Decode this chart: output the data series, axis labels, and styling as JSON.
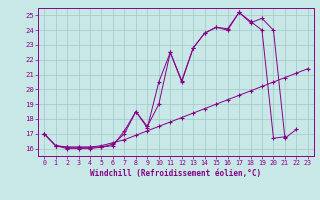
{
  "xlabel": "Windchill (Refroidissement éolien,°C)",
  "color": "#880088",
  "bg_color": "#c8e8e8",
  "grid_color": "#a0c8c8",
  "ylim": [
    15.5,
    25.5
  ],
  "xlim": [
    -0.5,
    23.5
  ],
  "yticks": [
    16,
    17,
    18,
    19,
    20,
    21,
    22,
    23,
    24,
    25
  ],
  "xticks": [
    0,
    1,
    2,
    3,
    4,
    5,
    6,
    7,
    8,
    9,
    10,
    11,
    12,
    13,
    14,
    15,
    16,
    17,
    18,
    19,
    20,
    21,
    22,
    23
  ],
  "x": [
    0,
    1,
    2,
    3,
    4,
    5,
    6,
    7,
    8,
    9,
    10,
    11,
    12,
    13,
    14,
    15,
    16,
    17,
    18,
    19,
    20,
    21,
    22,
    23
  ],
  "line_straight": [
    17.0,
    16.2,
    16.1,
    16.1,
    16.1,
    16.2,
    16.4,
    16.6,
    16.9,
    17.2,
    17.5,
    17.8,
    18.1,
    18.4,
    18.7,
    19.0,
    19.3,
    19.6,
    19.9,
    20.2,
    20.5,
    20.8,
    21.1,
    21.4
  ],
  "line_mid": [
    17.0,
    16.2,
    16.0,
    16.0,
    16.0,
    16.1,
    16.2,
    17.2,
    18.5,
    17.5,
    19.0,
    22.5,
    20.6,
    22.8,
    23.8,
    24.2,
    24.1,
    25.2,
    24.6,
    24.0,
    16.7,
    16.8,
    null,
    null
  ],
  "line_top": [
    17.0,
    16.2,
    16.1,
    16.1,
    16.1,
    16.1,
    16.3,
    17.0,
    18.5,
    17.4,
    20.5,
    22.5,
    20.5,
    22.8,
    23.8,
    24.2,
    24.0,
    25.2,
    24.5,
    24.8,
    24.0,
    16.7,
    17.3,
    null
  ]
}
